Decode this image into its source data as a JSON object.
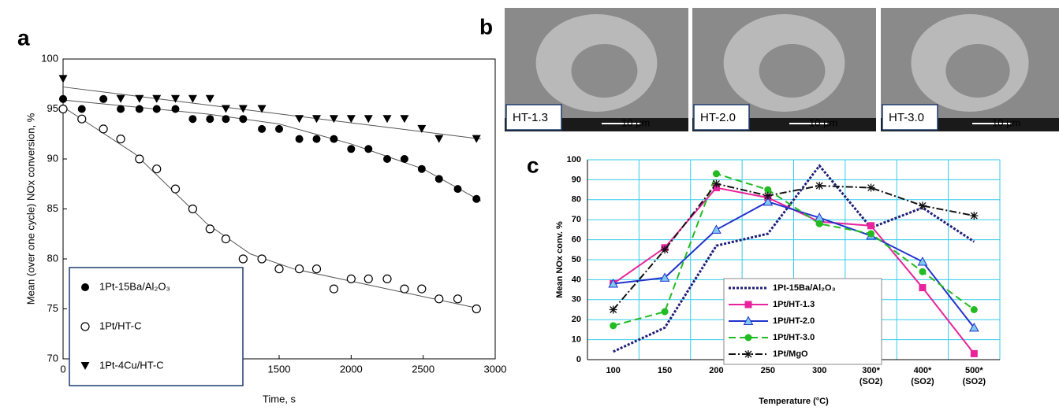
{
  "panel_labels": [
    "a",
    "b",
    "c"
  ],
  "images": [
    {
      "label": "HT-1.3",
      "scale": "10 μm"
    },
    {
      "label": "HT-2.0",
      "scale": "10 μm"
    },
    {
      "label": "HT-3.0",
      "scale": "10 μm"
    }
  ],
  "chart_data": [
    {
      "type": "scatter",
      "x_label": "Time, s",
      "y_label": "Mean (over one cycle) NOx conversion, %",
      "xlim": [
        0,
        3000
      ],
      "xticks": [
        0,
        500,
        1000,
        1500,
        2000,
        2500,
        3000
      ],
      "ylim": [
        70,
        100
      ],
      "yticks": [
        70,
        75,
        80,
        85,
        90,
        95,
        100
      ],
      "series": [
        {
          "name": "1Pt-15Ba/Al₂O₃",
          "color": "#000000",
          "marker": "filled-circle",
          "x": [
            0,
            130,
            280,
            400,
            530,
            650,
            780,
            900,
            1020,
            1130,
            1250,
            1380,
            1500,
            1640,
            1760,
            1880,
            2000,
            2120,
            2250,
            2370,
            2490,
            2610,
            2740,
            2870
          ],
          "values": [
            96,
            95,
            96,
            95,
            95,
            95,
            95,
            94,
            94,
            94,
            94,
            93,
            93,
            92,
            92,
            92,
            91,
            91,
            90,
            90,
            89,
            88,
            87,
            86
          ]
        },
        {
          "name": "1Pt/HT-C",
          "color": "#000000",
          "marker": "open-circle",
          "x": [
            0,
            130,
            280,
            400,
            530,
            650,
            780,
            900,
            1020,
            1130,
            1250,
            1380,
            1500,
            1640,
            1760,
            1880,
            2000,
            2120,
            2250,
            2370,
            2490,
            2610,
            2740,
            2870
          ],
          "values": [
            95,
            94,
            93,
            92,
            90,
            89,
            87,
            85,
            83,
            82,
            80,
            80,
            79,
            79,
            79,
            77,
            78,
            78,
            78,
            77,
            77,
            76,
            76,
            75
          ]
        },
        {
          "name": "1Pt-4Cu/HT-C",
          "color": "#000000",
          "marker": "triangle-down",
          "x": [
            0,
            400,
            530,
            650,
            780,
            900,
            1020,
            1130,
            1250,
            1380,
            1640,
            1760,
            1880,
            2000,
            2120,
            2250,
            2370,
            2490,
            2610,
            2870
          ],
          "values": [
            98,
            96,
            96,
            96,
            96,
            96,
            96,
            95,
            95,
            95,
            94,
            94,
            94,
            94,
            94,
            94,
            94,
            93,
            92,
            92
          ]
        }
      ],
      "fits": [
        {
          "color": "#555555",
          "x": [
            0,
            1000,
            1500,
            2000,
            2500,
            2900
          ],
          "values": [
            95.9,
            94.5,
            93.5,
            91.5,
            89,
            85.8
          ]
        },
        {
          "color": "#555555",
          "x": [
            0,
            500,
            1000,
            1300,
            1600,
            2900
          ],
          "values": [
            95.2,
            90.5,
            83.5,
            80.5,
            79,
            75
          ]
        },
        {
          "color": "#555555",
          "x": [
            0,
            2900
          ],
          "values": [
            97.2,
            92
          ]
        }
      ]
    },
    {
      "type": "line",
      "x_label": "Temperature (°C)",
      "y_label": "Mean NOx conv. %",
      "categories": [
        "100",
        "150",
        "200",
        "250",
        "300",
        "300*",
        "400*",
        "500*"
      ],
      "category_sublabels": [
        null,
        null,
        null,
        null,
        null,
        "(SO2)",
        "(SO2)",
        "(SO2)"
      ],
      "ylim": [
        0,
        100
      ],
      "yticks": [
        0,
        10,
        20,
        30,
        40,
        50,
        60,
        70,
        80,
        90,
        100
      ],
      "grid": true,
      "grid_color": "#33ccee",
      "series": [
        {
          "name": "1Pt-15Ba/Al₂O₃",
          "color": "#1f1f7a",
          "dash": "dashed",
          "marker": "none",
          "values": [
            4,
            16,
            57,
            63,
            97,
            66,
            76,
            59
          ]
        },
        {
          "name": "1Pt/HT-1.3",
          "color": "#e8239b",
          "dash": "solid",
          "marker": "square",
          "values": [
            38,
            56,
            86,
            81,
            69,
            67,
            36,
            3
          ]
        },
        {
          "name": "1Pt/HT-2.0",
          "color": "#2233cc",
          "dash": "solid",
          "marker": "triangle-up",
          "values": [
            38,
            41,
            65,
            79,
            71,
            62,
            49,
            16
          ]
        },
        {
          "name": "1Pt/HT-3.0",
          "color": "#22bb22",
          "dash": "dash",
          "marker": "circle",
          "values": [
            17,
            24,
            93,
            85,
            68,
            63,
            44,
            25
          ]
        },
        {
          "name": "1Pt/MgO",
          "color": "#111111",
          "dash": "dashdot",
          "marker": "asterisk",
          "values": [
            25,
            55,
            88,
            82,
            87,
            86,
            77,
            72
          ]
        }
      ]
    }
  ]
}
